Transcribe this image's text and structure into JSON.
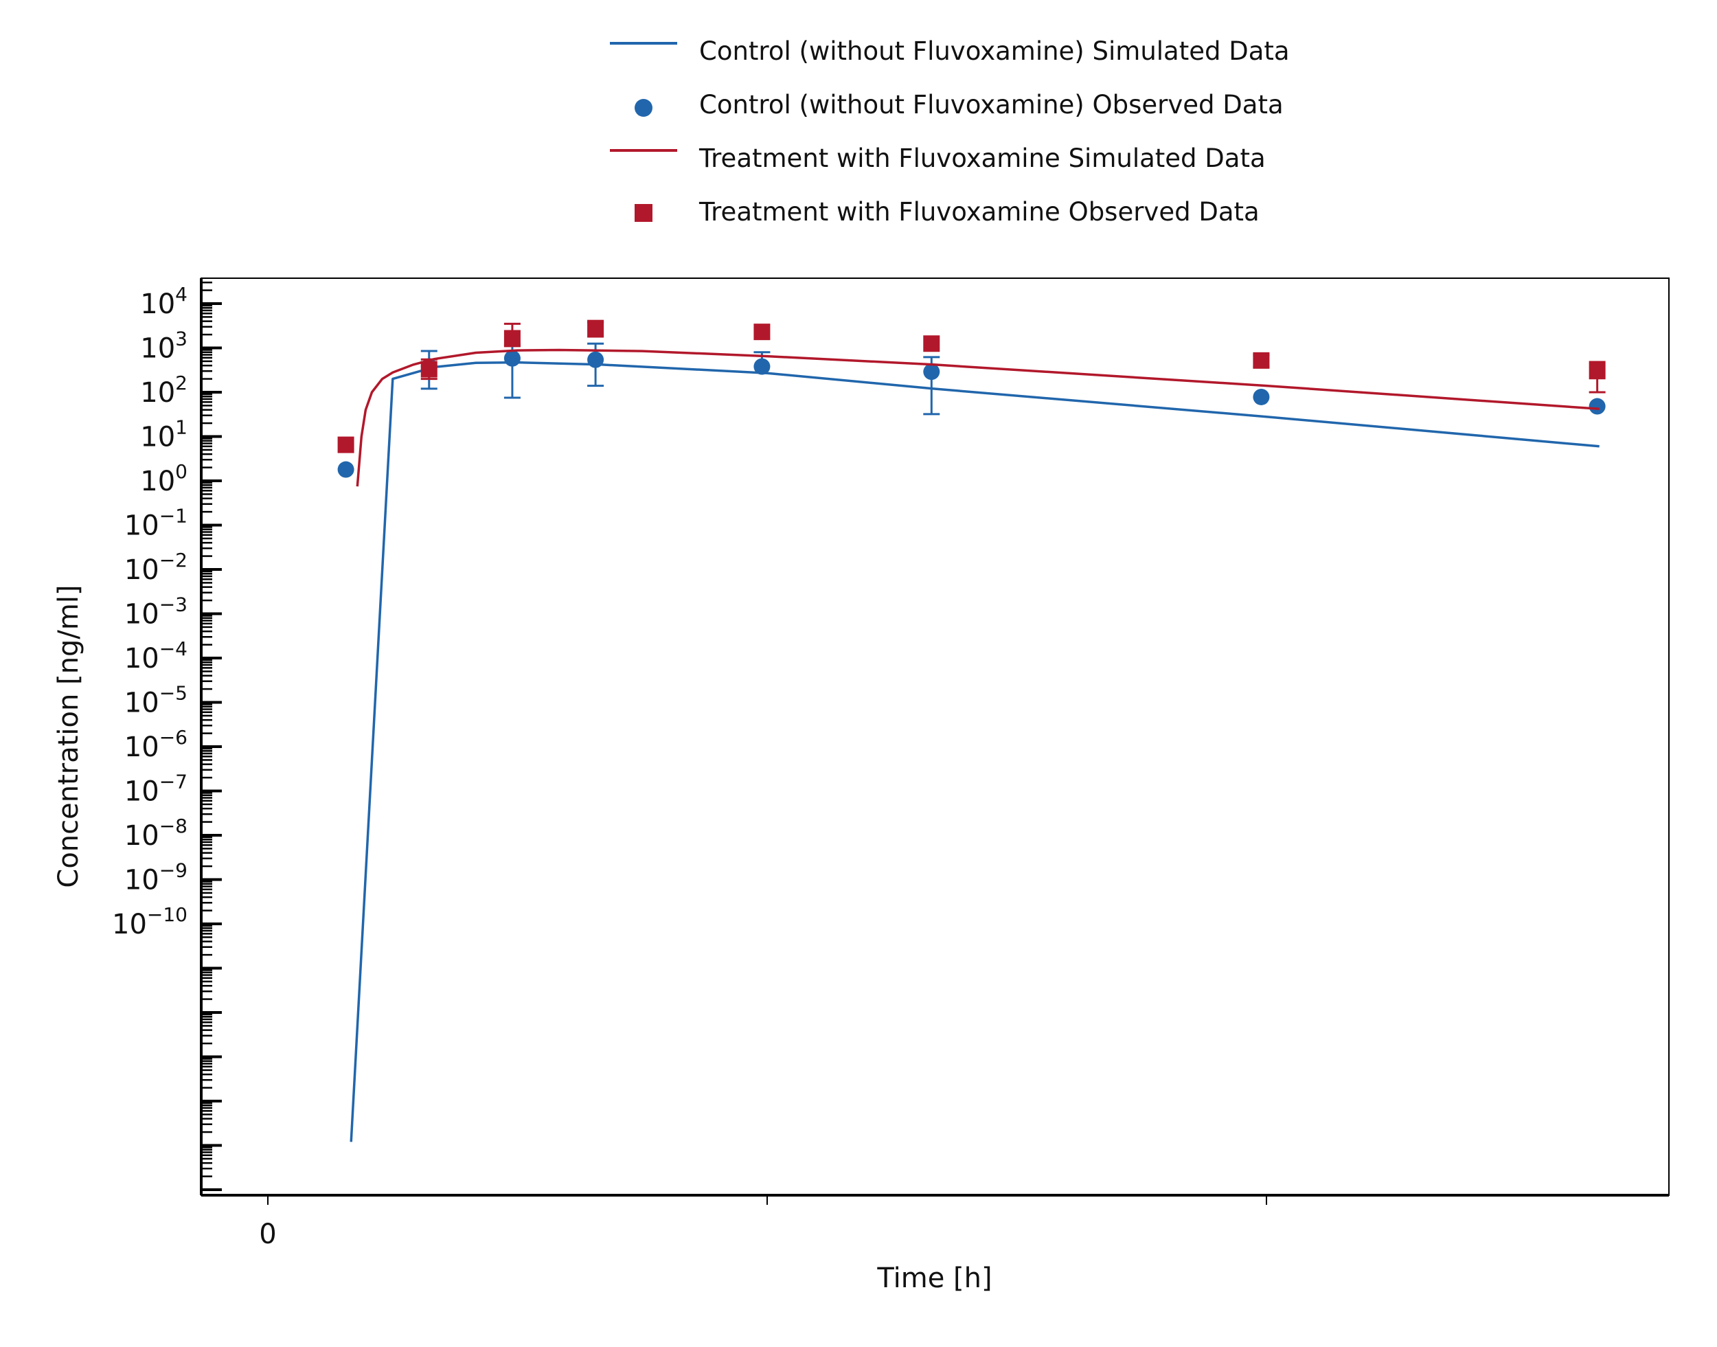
{
  "chart_data": {
    "type": "line",
    "xlabel": "Time [h]",
    "ylabel": "Concentration [ng/ml]",
    "y_scale": "log",
    "x_tick_labels": [
      {
        "value": 0,
        "label": "0"
      }
    ],
    "unlabeled_x_ticks": [
      24,
      48
    ],
    "xlim": [
      -3.2,
      67.3
    ],
    "ylim_log10": [
      -16,
      4.6
    ],
    "y_tick_labels": [
      {
        "mantissa": "10",
        "exponent": "4",
        "log10": 4
      },
      {
        "mantissa": "10",
        "exponent": "3",
        "log10": 3
      },
      {
        "mantissa": "10",
        "exponent": "2",
        "log10": 2
      },
      {
        "mantissa": "10",
        "exponent": "1",
        "log10": 1
      },
      {
        "mantissa": "10",
        "exponent": "0",
        "log10": 0
      },
      {
        "mantissa": "10",
        "exponent": "−1",
        "log10": -1
      },
      {
        "mantissa": "10",
        "exponent": "−2",
        "log10": -2
      },
      {
        "mantissa": "10",
        "exponent": "−3",
        "log10": -3
      },
      {
        "mantissa": "10",
        "exponent": "−4",
        "log10": -4
      },
      {
        "mantissa": "10",
        "exponent": "−5",
        "log10": -5
      },
      {
        "mantissa": "10",
        "exponent": "−6",
        "log10": -6
      },
      {
        "mantissa": "10",
        "exponent": "−7",
        "log10": -7
      },
      {
        "mantissa": "10",
        "exponent": "−8",
        "log10": -8
      },
      {
        "mantissa": "10",
        "exponent": "−9",
        "log10": -9
      },
      {
        "mantissa": "10",
        "exponent": "−10",
        "log10": -10
      }
    ],
    "unlabeled_major_log10": [
      -11,
      -12,
      -13,
      -14,
      -15,
      -16
    ],
    "legend": {
      "placement": "top-center"
    },
    "series": [
      {
        "name": "Control (without Fluvoxamine) Simulated Data",
        "kind": "line",
        "color": "#2166ac",
        "x": [
          4.0,
          6.0,
          8.0,
          10.0,
          12.0,
          16.0,
          24.0,
          32.0,
          48.0,
          64.0
        ],
        "y": [
          1.2e-15,
          200,
          370,
          460,
          470,
          420,
          270,
          120,
          28,
          6
        ]
      },
      {
        "name": "Control (without Fluvoxamine) Observed Data",
        "kind": "scatter",
        "marker": "circle",
        "color": "#2166ac",
        "x": [
          3.75,
          7.75,
          11.75,
          15.75,
          23.75,
          31.9,
          47.75,
          63.9
        ],
        "y": [
          1.8,
          380,
          580,
          540,
          380,
          290,
          78,
          48
        ],
        "y_err_low": [
          null,
          120,
          75,
          140,
          null,
          32,
          null,
          null
        ],
        "y_err_high": [
          null,
          850,
          1200,
          1250,
          800,
          620,
          null,
          null
        ]
      },
      {
        "name": "Treatment with Fluvoxamine Simulated Data",
        "kind": "line",
        "color": "#b2182b",
        "x": [
          4.3,
          4.5,
          4.7,
          5.0,
          5.5,
          6.0,
          7.0,
          8.0,
          10.0,
          12.0,
          14.0,
          18.0,
          24.0,
          32.0,
          48.0,
          64.0
        ],
        "y": [
          0.75,
          10,
          40,
          100,
          200,
          280,
          420,
          560,
          780,
          880,
          900,
          850,
          650,
          420,
          140,
          42
        ],
        "y_err_low": [],
        "y_err_high": []
      },
      {
        "name": "Treatment with Fluvoxamine Observed Data",
        "kind": "scatter",
        "marker": "square",
        "color": "#b2182b",
        "x": [
          3.75,
          7.75,
          11.75,
          15.75,
          23.75,
          31.9,
          47.75,
          63.9
        ],
        "y": [
          6.5,
          330,
          1650,
          2800,
          2300,
          1250,
          520,
          300
        ],
        "y_err_low": [
          null,
          200,
          1100,
          1800,
          null,
          null,
          380,
          100
        ],
        "y_err_high": [
          null,
          550,
          3500,
          3800,
          null,
          null,
          680,
          480
        ]
      }
    ]
  }
}
